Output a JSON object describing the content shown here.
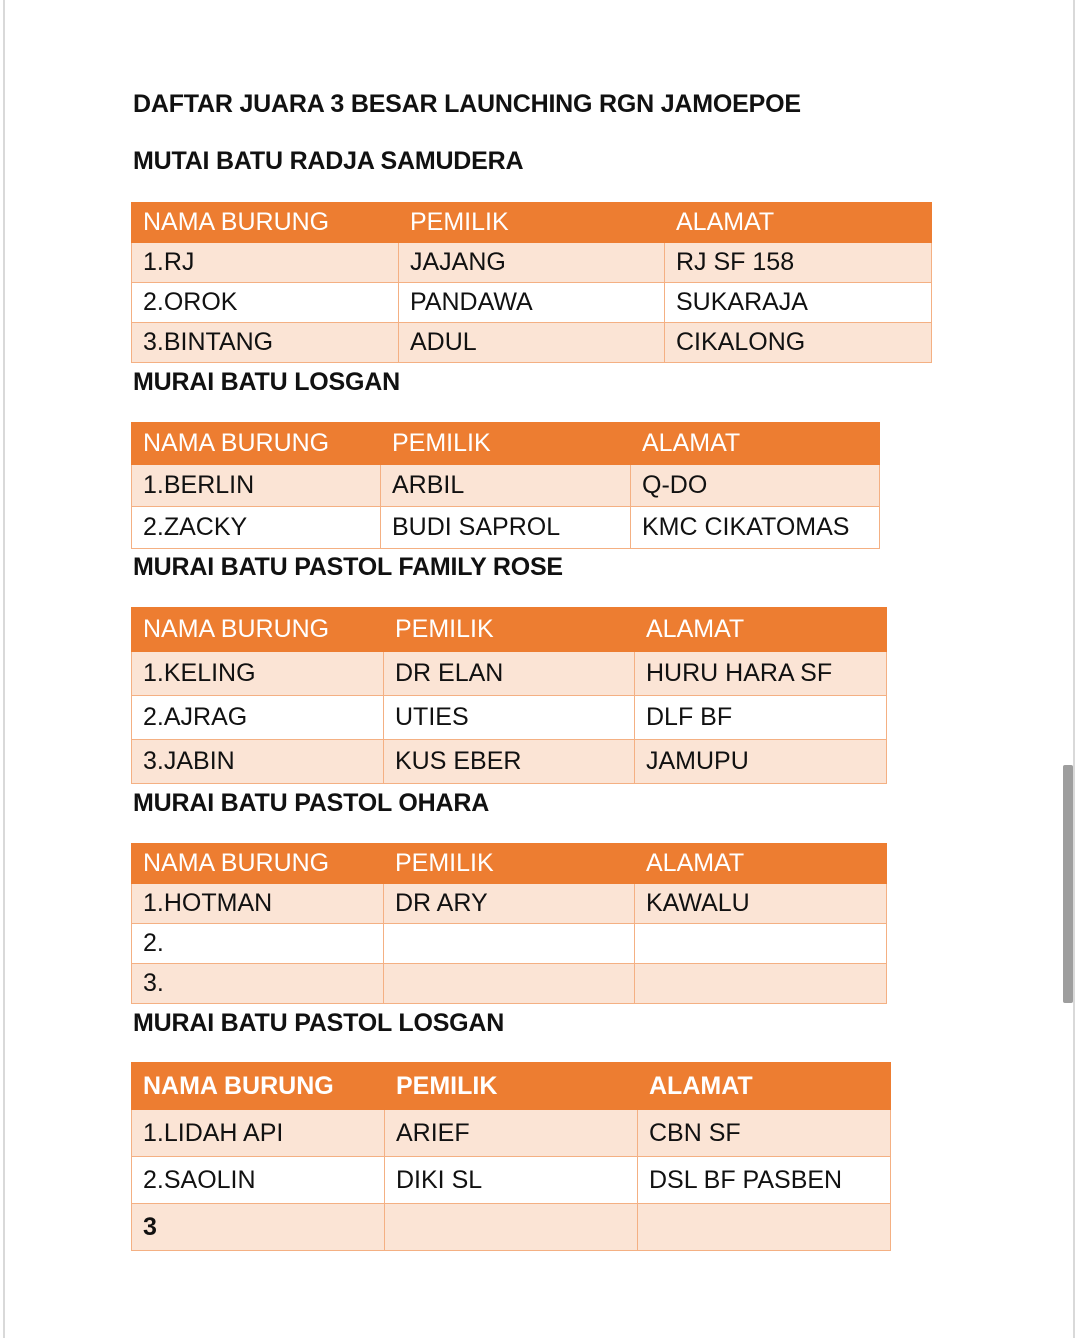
{
  "document": {
    "title": "DAFTAR JUARA 3 BESAR LAUNCHING RGN JAMOEPOE",
    "colors": {
      "header": "#ED7D31",
      "band": "#FBE4D5",
      "border": "#F4B083"
    },
    "sections": [
      {
        "heading": "MUTAI BATU RADJA SAMUDERA",
        "columns": [
          "NAMA BURUNG",
          "PEMILIK",
          "ALAMAT"
        ],
        "rows": [
          [
            "1.RJ",
            "JAJANG",
            "RJ SF 158"
          ],
          [
            "2.OROK",
            "PANDAWA",
            "SUKARAJA"
          ],
          [
            "3.BINTANG",
            "ADUL",
            "CIKALONG"
          ]
        ]
      },
      {
        "heading": "MURAI BATU LOSGAN",
        "columns": [
          "NAMA BURUNG",
          "PEMILIK",
          "ALAMAT"
        ],
        "rows": [
          [
            "1.BERLIN",
            "ARBIL",
            "Q-DO"
          ],
          [
            "2.ZACKY",
            "BUDI SAPROL",
            "KMC CIKATOMAS"
          ]
        ]
      },
      {
        "heading": "MURAI BATU PASTOL FAMILY ROSE",
        "columns": [
          "NAMA BURUNG",
          "PEMILIK",
          "ALAMAT"
        ],
        "rows": [
          [
            "1.KELING",
            "DR ELAN",
            "HURU HARA SF"
          ],
          [
            "2.AJRAG",
            "UTIES",
            "DLF BF"
          ],
          [
            "3.JABIN",
            "KUS EBER",
            "JAMUPU"
          ]
        ]
      },
      {
        "heading": "MURAI BATU PASTOL OHARA",
        "columns": [
          "NAMA BURUNG",
          "PEMILIK",
          "ALAMAT"
        ],
        "rows": [
          [
            "1.HOTMAN",
            "DR ARY",
            "KAWALU"
          ],
          [
            "2.",
            "",
            ""
          ],
          [
            "3.",
            "",
            ""
          ]
        ]
      },
      {
        "heading": "MURAI BATU PASTOL LOSGAN",
        "columns": [
          "NAMA BURUNG",
          "PEMILIK",
          "ALAMAT"
        ],
        "rows": [
          [
            "1.LIDAH API",
            "ARIEF",
            "CBN SF"
          ],
          [
            "2.SAOLIN",
            "DIKI SL",
            "DSL BF PASBEN"
          ],
          [
            "3",
            "",
            ""
          ]
        ]
      }
    ]
  }
}
